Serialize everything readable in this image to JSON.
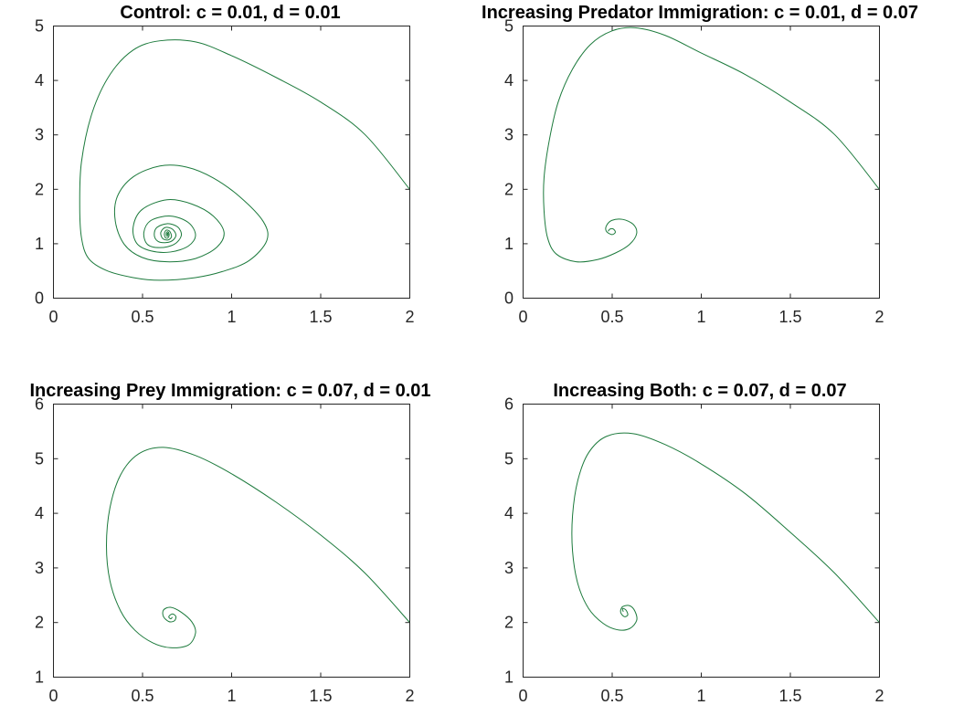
{
  "colors": {
    "line": "#1c7a3c",
    "axes": "#262626",
    "background": "#ffffff"
  },
  "chart_data": [
    {
      "type": "line",
      "title": "Control: c = 0.01, d = 0.01",
      "xlabel": "",
      "ylabel": "",
      "xlim": [
        0,
        2
      ],
      "ylim": [
        0,
        5
      ],
      "xticks": [
        "0",
        "0.5",
        "1",
        "1.5",
        "2"
      ],
      "yticks": [
        "0",
        "1",
        "2",
        "3",
        "4",
        "5"
      ],
      "grid": false,
      "series": [
        {
          "x": [
            2.0,
            1.75,
            1.5,
            1.25,
            1.0,
            0.8,
            0.6,
            0.45,
            0.32,
            0.22,
            0.16,
            0.15,
            0.16,
            0.2,
            0.3,
            0.45,
            0.6,
            0.8,
            0.95,
            1.1,
            1.2,
            1.18,
            1.05,
            0.9,
            0.75,
            0.6,
            0.45,
            0.36,
            0.35,
            0.4,
            0.5,
            0.64,
            0.8,
            0.92,
            0.96,
            0.9,
            0.78,
            0.64,
            0.5,
            0.45,
            0.47,
            0.55,
            0.66,
            0.76,
            0.8,
            0.76,
            0.66,
            0.55,
            0.51,
            0.53,
            0.6,
            0.68,
            0.72,
            0.7,
            0.64,
            0.58,
            0.57,
            0.6,
            0.66,
            0.69,
            0.67,
            0.63,
            0.605,
            0.615,
            0.645,
            0.665,
            0.655,
            0.635,
            0.625,
            0.632,
            0.645,
            0.652,
            0.646,
            0.638,
            0.636,
            0.641,
            0.646,
            0.644,
            0.64
          ],
          "y": [
            2.0,
            3.0,
            3.6,
            4.05,
            4.45,
            4.7,
            4.72,
            4.55,
            4.1,
            3.4,
            2.5,
            1.7,
            1.1,
            0.72,
            0.5,
            0.37,
            0.32,
            0.37,
            0.48,
            0.68,
            1.05,
            1.4,
            1.85,
            2.2,
            2.4,
            2.42,
            2.22,
            1.85,
            1.4,
            0.98,
            0.74,
            0.66,
            0.72,
            0.93,
            1.2,
            1.5,
            1.72,
            1.8,
            1.62,
            1.3,
            1.0,
            0.86,
            0.84,
            0.95,
            1.15,
            1.38,
            1.5,
            1.42,
            1.2,
            0.98,
            0.92,
            0.98,
            1.14,
            1.3,
            1.36,
            1.28,
            1.12,
            1.02,
            1.03,
            1.14,
            1.26,
            1.29,
            1.2,
            1.09,
            1.06,
            1.12,
            1.22,
            1.24,
            1.17,
            1.1,
            1.1,
            1.16,
            1.21,
            1.2,
            1.15,
            1.13,
            1.16,
            1.19,
            1.16
          ]
        }
      ]
    },
    {
      "type": "line",
      "title": "Increasing Predator Immigration: c = 0.01, d = 0.07",
      "xlabel": "",
      "ylabel": "",
      "xlim": [
        0,
        2
      ],
      "ylim": [
        0,
        5
      ],
      "xticks": [
        "0",
        "0.5",
        "1",
        "1.5",
        "2"
      ],
      "yticks": [
        "0",
        "1",
        "2",
        "3",
        "4",
        "5"
      ],
      "grid": false,
      "series": [
        {
          "x": [
            2.0,
            1.75,
            1.5,
            1.25,
            1.0,
            0.8,
            0.63,
            0.5,
            0.38,
            0.28,
            0.2,
            0.15,
            0.12,
            0.12,
            0.14,
            0.19,
            0.3,
            0.42,
            0.52,
            0.6,
            0.64,
            0.62,
            0.56,
            0.5,
            0.47,
            0.47,
            0.5,
            0.52,
            0.51,
            0.49,
            0.48
          ],
          "y": [
            2.0,
            3.0,
            3.6,
            4.1,
            4.5,
            4.82,
            4.96,
            4.9,
            4.65,
            4.2,
            3.6,
            2.9,
            2.2,
            1.6,
            1.1,
            0.8,
            0.66,
            0.7,
            0.82,
            0.98,
            1.18,
            1.35,
            1.44,
            1.42,
            1.32,
            1.22,
            1.16,
            1.2,
            1.26,
            1.26,
            1.22
          ]
        }
      ]
    },
    {
      "type": "line",
      "title": "Increasing Prey Immigration: c = 0.07, d = 0.01",
      "xlabel": "",
      "ylabel": "",
      "xlim": [
        0,
        2
      ],
      "ylim": [
        1,
        6
      ],
      "xticks": [
        "0",
        "0.5",
        "1",
        "1.5",
        "2"
      ],
      "yticks": [
        "1",
        "2",
        "3",
        "4",
        "5",
        "6"
      ],
      "grid": false,
      "series": [
        {
          "x": [
            2.0,
            1.75,
            1.5,
            1.25,
            1.0,
            0.8,
            0.62,
            0.48,
            0.38,
            0.32,
            0.3,
            0.32,
            0.38,
            0.46,
            0.56,
            0.66,
            0.76,
            0.8,
            0.78,
            0.72,
            0.66,
            0.62,
            0.62,
            0.65,
            0.68,
            0.69,
            0.67,
            0.65,
            0.66,
            0.67
          ],
          "y": [
            2.0,
            2.9,
            3.6,
            4.2,
            4.72,
            5.05,
            5.2,
            5.08,
            4.7,
            4.1,
            3.4,
            2.75,
            2.2,
            1.85,
            1.62,
            1.53,
            1.58,
            1.8,
            2.0,
            2.18,
            2.27,
            2.22,
            2.1,
            2.01,
            2.02,
            2.1,
            2.15,
            2.1,
            2.06,
            2.09
          ]
        }
      ]
    },
    {
      "type": "line",
      "title": "Increasing Both: c = 0.07, d = 0.07",
      "xlabel": "",
      "ylabel": "",
      "xlim": [
        0,
        2
      ],
      "ylim": [
        1,
        6
      ],
      "xticks": [
        "0",
        "0.5",
        "1",
        "1.5",
        "2"
      ],
      "yticks": [
        "1",
        "2",
        "3",
        "4",
        "5",
        "6"
      ],
      "grid": false,
      "series": [
        {
          "x": [
            2.0,
            1.75,
            1.5,
            1.25,
            1.0,
            0.8,
            0.62,
            0.47,
            0.37,
            0.31,
            0.28,
            0.28,
            0.31,
            0.37,
            0.45,
            0.53,
            0.6,
            0.64,
            0.63,
            0.6,
            0.56,
            0.55,
            0.57,
            0.59,
            0.58,
            0.56,
            0.565
          ],
          "y": [
            2.0,
            2.9,
            3.65,
            4.35,
            4.9,
            5.25,
            5.45,
            5.4,
            5.1,
            4.6,
            3.95,
            3.3,
            2.7,
            2.25,
            1.98,
            1.86,
            1.88,
            2.03,
            2.2,
            2.3,
            2.28,
            2.18,
            2.1,
            2.13,
            2.22,
            2.25,
            2.19
          ]
        }
      ]
    }
  ]
}
